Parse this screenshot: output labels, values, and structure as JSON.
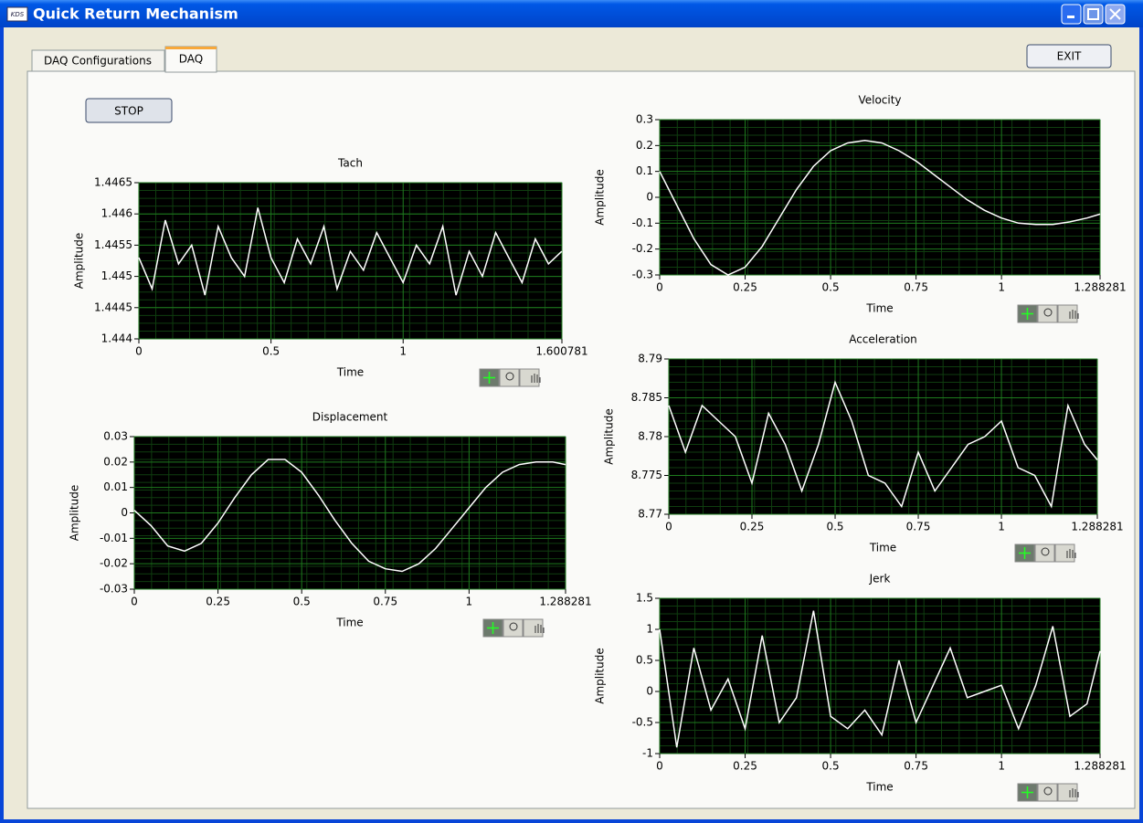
{
  "window": {
    "icon": "KDS",
    "title": "Quick Return Mechanism"
  },
  "tabs": [
    "DAQ Configurations",
    "DAQ"
  ],
  "buttons": {
    "stop": "STOP",
    "exit": "EXIT"
  },
  "chart_data": [
    {
      "type": "line",
      "title": "Tach",
      "x_label": "Time",
      "y_label": "Amplitude",
      "x": [
        0,
        0.05,
        0.1,
        0.15,
        0.2,
        0.25,
        0.3,
        0.35,
        0.4,
        0.45,
        0.5,
        0.55,
        0.6,
        0.65,
        0.7,
        0.75,
        0.8,
        0.85,
        0.9,
        0.95,
        1,
        1.05,
        1.1,
        1.15,
        1.2,
        1.25,
        1.3,
        1.35,
        1.4,
        1.45,
        1.5,
        1.55,
        1.6
      ],
      "series": [
        {
          "color": "#ffffff",
          "values": [
            1.4453,
            1.4448,
            1.4459,
            1.4452,
            1.4455,
            1.4447,
            1.4458,
            1.4453,
            1.445,
            1.4461,
            1.4453,
            1.4449,
            1.4456,
            1.4452,
            1.4458,
            1.4448,
            1.4454,
            1.4451,
            1.4457,
            1.4453,
            1.4449,
            1.4455,
            1.4452,
            1.4458,
            1.4447,
            1.4454,
            1.445,
            1.4457,
            1.4453,
            1.4449,
            1.4456,
            1.4452,
            1.4454
          ]
        }
      ],
      "xlim": [
        0,
        1.600781
      ],
      "xticks": [
        0,
        0.5,
        1,
        1.600781
      ],
      "ylim": [
        1.444,
        1.4465
      ],
      "yticks": [
        1.444,
        1.4445,
        1.445,
        1.4455,
        1.446,
        1.4465
      ],
      "plot_background": "#000000",
      "grid_color": "#1e7a1e",
      "grid": true
    },
    {
      "type": "line",
      "title": "Displacement",
      "x_label": "Time",
      "y_label": "Amplitude",
      "x": [
        0,
        0.05,
        0.1,
        0.15,
        0.2,
        0.25,
        0.3,
        0.35,
        0.4,
        0.45,
        0.5,
        0.55,
        0.6,
        0.65,
        0.7,
        0.75,
        0.8,
        0.85,
        0.9,
        0.95,
        1,
        1.05,
        1.1,
        1.15,
        1.2,
        1.25,
        1.288281
      ],
      "series": [
        {
          "color": "#ffffff",
          "values": [
            0.001,
            -0.005,
            -0.013,
            -0.015,
            -0.012,
            -0.004,
            0.006,
            0.015,
            0.021,
            0.021,
            0.016,
            0.007,
            -0.003,
            -0.012,
            -0.019,
            -0.022,
            -0.023,
            -0.02,
            -0.014,
            -0.006,
            0.002,
            0.01,
            0.016,
            0.019,
            0.02,
            0.02,
            0.019
          ]
        }
      ],
      "xlim": [
        0,
        1.288281
      ],
      "xticks": [
        0,
        0.25,
        0.5,
        0.75,
        1,
        1.288281
      ],
      "ylim": [
        -0.03,
        0.03
      ],
      "yticks": [
        -0.03,
        -0.02,
        -0.01,
        0,
        0.01,
        0.02,
        0.03
      ],
      "plot_background": "#000000",
      "grid_color": "#1e7a1e",
      "grid": true
    },
    {
      "type": "line",
      "title": "Velocity",
      "x_label": "Time",
      "y_label": "Amplitude",
      "x": [
        0,
        0.05,
        0.1,
        0.15,
        0.2,
        0.25,
        0.3,
        0.35,
        0.4,
        0.45,
        0.5,
        0.55,
        0.6,
        0.65,
        0.7,
        0.75,
        0.8,
        0.85,
        0.9,
        0.95,
        1,
        1.05,
        1.1,
        1.15,
        1.2,
        1.25,
        1.288281
      ],
      "series": [
        {
          "color": "#ffffff",
          "values": [
            0.1,
            -0.03,
            -0.16,
            -0.26,
            -0.3,
            -0.27,
            -0.19,
            -0.08,
            0.03,
            0.12,
            0.18,
            0.21,
            0.22,
            0.21,
            0.18,
            0.14,
            0.09,
            0.04,
            -0.01,
            -0.05,
            -0.08,
            -0.1,
            -0.105,
            -0.105,
            -0.095,
            -0.08,
            -0.065
          ]
        }
      ],
      "xlim": [
        0,
        1.288281
      ],
      "xticks": [
        0,
        0.25,
        0.5,
        0.75,
        1,
        1.288281
      ],
      "ylim": [
        -0.3,
        0.3
      ],
      "yticks": [
        -0.3,
        -0.2,
        -0.1,
        0,
        0.1,
        0.2,
        0.3
      ],
      "plot_background": "#000000",
      "grid_color": "#1e7a1e",
      "grid": true
    },
    {
      "type": "line",
      "title": "Acceleration",
      "x_label": "Time",
      "y_label": "Amplitude",
      "x": [
        0,
        0.05,
        0.1,
        0.15,
        0.2,
        0.25,
        0.3,
        0.35,
        0.4,
        0.45,
        0.5,
        0.55,
        0.6,
        0.65,
        0.7,
        0.75,
        0.8,
        0.85,
        0.9,
        0.95,
        1,
        1.05,
        1.1,
        1.15,
        1.2,
        1.25,
        1.288281
      ],
      "series": [
        {
          "color": "#ffffff",
          "values": [
            8.784,
            8.778,
            8.784,
            8.782,
            8.78,
            8.774,
            8.783,
            8.779,
            8.773,
            8.779,
            8.787,
            8.782,
            8.775,
            8.774,
            8.771,
            8.778,
            8.773,
            8.776,
            8.779,
            8.78,
            8.782,
            8.776,
            8.775,
            8.771,
            8.784,
            8.779,
            8.777
          ]
        }
      ],
      "xlim": [
        0,
        1.288281
      ],
      "xticks": [
        0,
        0.25,
        0.5,
        0.75,
        1,
        1.288281
      ],
      "ylim": [
        8.77,
        8.79
      ],
      "yticks": [
        8.77,
        8.775,
        8.78,
        8.785,
        8.79
      ],
      "plot_background": "#000000",
      "grid_color": "#1e7a1e",
      "grid": true
    },
    {
      "type": "line",
      "title": "Jerk",
      "x_label": "Time",
      "y_label": "Amplitude",
      "x": [
        0,
        0.05,
        0.1,
        0.15,
        0.2,
        0.25,
        0.3,
        0.35,
        0.4,
        0.45,
        0.5,
        0.55,
        0.6,
        0.65,
        0.7,
        0.75,
        0.8,
        0.85,
        0.9,
        0.95,
        1,
        1.05,
        1.1,
        1.15,
        1.2,
        1.25,
        1.288281
      ],
      "series": [
        {
          "color": "#ffffff",
          "values": [
            1,
            -0.9,
            0.7,
            -0.3,
            0.2,
            -0.6,
            0.9,
            -0.5,
            -0.1,
            1.3,
            -0.4,
            -0.6,
            -0.3,
            -0.7,
            0.5,
            -0.5,
            0.1,
            0.7,
            -0.1,
            0,
            0.1,
            -0.6,
            0.1,
            1.05,
            -0.4,
            -0.2,
            0.65
          ]
        }
      ],
      "xlim": [
        0,
        1.288281
      ],
      "xticks": [
        0,
        0.25,
        0.5,
        0.75,
        1,
        1.288281
      ],
      "ylim": [
        -1,
        1.5
      ],
      "yticks": [
        -1,
        -0.5,
        0,
        0.5,
        1,
        1.5
      ],
      "plot_background": "#000000",
      "grid_color": "#1e7a1e",
      "grid": true
    }
  ]
}
